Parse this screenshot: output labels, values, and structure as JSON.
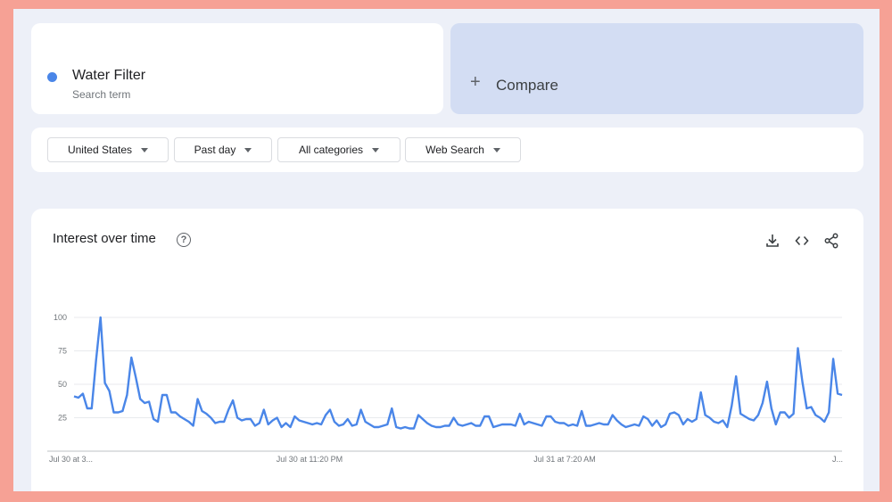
{
  "search_term": {
    "name": "Water Filter",
    "subtitle": "Search term",
    "color": "#4a86e8"
  },
  "compare": {
    "label": "Compare",
    "icon": "plus-icon"
  },
  "filters": [
    {
      "label": "United States"
    },
    {
      "label": "Past day"
    },
    {
      "label": "All categories"
    },
    {
      "label": "Web Search"
    }
  ],
  "interest_panel": {
    "title": "Interest over time",
    "help_icon": "help-circle-icon",
    "actions": [
      "download-icon",
      "embed-code-icon",
      "share-icon"
    ]
  },
  "chart_data": {
    "type": "line",
    "ylim": [
      0,
      100
    ],
    "y_ticks": [
      "25",
      "50",
      "75",
      "100"
    ],
    "x_tick_labels": [
      "Jul 30 at 3...",
      "Jul 30 at 11:20 PM",
      "Jul 31 at 7:20 AM",
      "J..."
    ],
    "grid": true,
    "series": [
      {
        "color": "#4a86e8",
        "values": [
          41,
          40,
          43,
          32,
          32,
          68,
          100,
          51,
          45,
          29,
          29,
          30,
          42,
          70,
          55,
          39,
          36,
          37,
          24,
          22,
          42,
          42,
          29,
          29,
          26,
          24,
          22,
          19,
          39,
          30,
          28,
          25,
          21,
          22,
          22,
          31,
          38,
          25,
          23,
          24,
          24,
          19,
          21,
          31,
          20,
          23,
          25,
          18,
          21,
          18,
          26,
          23,
          22,
          21,
          20,
          21,
          20,
          27,
          31,
          22,
          19,
          20,
          24,
          19,
          20,
          31,
          22,
          20,
          18,
          18,
          19,
          20,
          32,
          18,
          17,
          18,
          17,
          17,
          27,
          24,
          21,
          19,
          18,
          18,
          19,
          19,
          25,
          20,
          19,
          20,
          21,
          19,
          19,
          26,
          26,
          18,
          19,
          20,
          20,
          20,
          19,
          28,
          20,
          22,
          21,
          20,
          19,
          26,
          26,
          22,
          21,
          21,
          19,
          20,
          19,
          30,
          19,
          19,
          20,
          21,
          20,
          20,
          27,
          23,
          20,
          18,
          19,
          20,
          19,
          26,
          24,
          19,
          23,
          18,
          20,
          28,
          29,
          27,
          20,
          24,
          22,
          24,
          44,
          27,
          25,
          22,
          21,
          23,
          18,
          34,
          56,
          28,
          26,
          24,
          23,
          27,
          36,
          52,
          32,
          20,
          29,
          29,
          25,
          28,
          77,
          52,
          32,
          33,
          27,
          25,
          22,
          29,
          69,
          43,
          42
        ]
      }
    ]
  }
}
